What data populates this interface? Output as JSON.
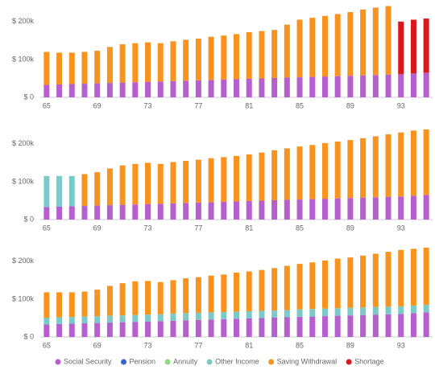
{
  "chart_data": [
    {
      "type": "bar",
      "stacked": true,
      "ylim": [
        0,
        240
      ],
      "yticks": [
        {
          "value": 0,
          "label": "$ 0"
        },
        {
          "value": 100,
          "label": "$ 100k"
        },
        {
          "value": 200,
          "label": "$ 200k"
        }
      ],
      "categories": [
        "65",
        null,
        null,
        null,
        "69",
        null,
        null,
        null,
        "73",
        null,
        null,
        null,
        "77",
        null,
        null,
        null,
        "81",
        null,
        null,
        null,
        "85",
        null,
        null,
        null,
        "89",
        null,
        null,
        null,
        "93",
        null,
        null
      ],
      "series": [
        {
          "values": [
            33,
            34,
            35,
            36,
            37,
            38,
            39,
            40,
            41,
            42,
            43,
            44,
            45,
            46,
            47,
            48,
            49,
            50,
            51,
            52,
            53,
            54,
            55,
            56,
            57,
            58,
            59,
            60,
            61,
            63,
            65
          ]
        },
        {
          "values": [
            0,
            0,
            0,
            0,
            0,
            0,
            0,
            0,
            0,
            0,
            0,
            0,
            0,
            0,
            0,
            0,
            0,
            0,
            0,
            0,
            0,
            0,
            0,
            0,
            0,
            0,
            0,
            0,
            0,
            0,
            0
          ]
        },
        {
          "values": [
            0,
            0,
            0,
            0,
            0,
            0,
            0,
            0,
            0,
            0,
            0,
            0,
            0,
            0,
            0,
            0,
            0,
            0,
            0,
            0,
            0,
            0,
            0,
            0,
            0,
            0,
            0,
            0,
            0,
            0,
            0
          ]
        },
        {
          "values": [
            0,
            0,
            0,
            0,
            0,
            0,
            0,
            0,
            0,
            0,
            0,
            0,
            0,
            0,
            0,
            0,
            0,
            0,
            0,
            0,
            0,
            0,
            0,
            0,
            0,
            0,
            0,
            0,
            0,
            0,
            0
          ]
        },
        {
          "values": [
            87,
            84,
            83,
            84,
            86,
            95,
            101,
            103,
            104,
            101,
            105,
            108,
            110,
            114,
            116,
            119,
            123,
            125,
            127,
            140,
            152,
            156,
            160,
            164,
            168,
            174,
            178,
            181,
            0,
            0,
            0
          ]
        },
        {
          "values": [
            0,
            0,
            0,
            0,
            0,
            0,
            0,
            0,
            0,
            0,
            0,
            0,
            0,
            0,
            0,
            0,
            0,
            0,
            0,
            0,
            0,
            0,
            0,
            0,
            0,
            0,
            0,
            0,
            139,
            142,
            143
          ]
        }
      ]
    },
    {
      "type": "bar",
      "stacked": true,
      "ylim": [
        0,
        240
      ],
      "yticks": [
        {
          "value": 0,
          "label": "$ 0"
        },
        {
          "value": 100,
          "label": "$ 100k"
        },
        {
          "value": 200,
          "label": "$ 200k"
        }
      ],
      "categories": [
        "65",
        null,
        null,
        null,
        "69",
        null,
        null,
        null,
        "73",
        null,
        null,
        null,
        "77",
        null,
        null,
        null,
        "81",
        null,
        null,
        null,
        "85",
        null,
        null,
        null,
        "89",
        null,
        null,
        null,
        "93",
        null,
        null
      ],
      "series": [
        {
          "values": [
            33,
            34,
            35,
            36,
            37,
            38,
            39,
            40,
            41,
            42,
            43,
            44,
            45,
            46,
            47,
            48,
            49,
            50,
            51,
            52,
            53,
            54,
            55,
            56,
            57,
            58,
            59,
            60,
            61,
            63,
            65
          ]
        },
        {
          "values": [
            0,
            0,
            0,
            0,
            0,
            0,
            0,
            0,
            0,
            0,
            0,
            0,
            0,
            0,
            0,
            0,
            0,
            0,
            0,
            0,
            0,
            0,
            0,
            0,
            0,
            0,
            0,
            0,
            0,
            0,
            0
          ]
        },
        {
          "values": [
            0,
            0,
            0,
            0,
            0,
            0,
            0,
            0,
            0,
            0,
            0,
            0,
            0,
            0,
            0,
            0,
            0,
            0,
            0,
            0,
            0,
            0,
            0,
            0,
            0,
            0,
            0,
            0,
            0,
            0,
            0
          ]
        },
        {
          "values": [
            82,
            81,
            80,
            0,
            0,
            0,
            0,
            0,
            0,
            0,
            0,
            0,
            0,
            0,
            0,
            0,
            0,
            0,
            0,
            0,
            0,
            0,
            0,
            0,
            0,
            0,
            0,
            0,
            0,
            0,
            0
          ]
        },
        {
          "values": [
            0,
            0,
            0,
            84,
            88,
            97,
            104,
            107,
            109,
            105,
            109,
            111,
            113,
            116,
            118,
            120,
            123,
            127,
            132,
            136,
            140,
            143,
            147,
            150,
            153,
            157,
            161,
            165,
            169,
            172,
            173
          ]
        },
        {
          "values": [
            0,
            0,
            0,
            0,
            0,
            0,
            0,
            0,
            0,
            0,
            0,
            0,
            0,
            0,
            0,
            0,
            0,
            0,
            0,
            0,
            0,
            0,
            0,
            0,
            0,
            0,
            0,
            0,
            0,
            0,
            0
          ]
        }
      ]
    },
    {
      "type": "bar",
      "stacked": true,
      "ylim": [
        0,
        240
      ],
      "yticks": [
        {
          "value": 0,
          "label": "$ 0"
        },
        {
          "value": 100,
          "label": "$ 100k"
        },
        {
          "value": 200,
          "label": "$ 200k"
        }
      ],
      "categories": [
        "65",
        null,
        null,
        null,
        "69",
        null,
        null,
        null,
        "73",
        null,
        null,
        null,
        "77",
        null,
        null,
        null,
        "81",
        null,
        null,
        null,
        "85",
        null,
        null,
        null,
        "89",
        null,
        null,
        null,
        "93",
        null,
        null
      ],
      "series": [
        {
          "values": [
            33,
            34,
            35,
            36,
            37,
            38,
            39,
            40,
            41,
            42,
            43,
            44,
            45,
            46,
            47,
            48,
            49,
            50,
            51,
            52,
            53,
            54,
            55,
            56,
            57,
            58,
            59,
            60,
            61,
            63,
            65
          ]
        },
        {
          "values": [
            0,
            0,
            0,
            0,
            0,
            0,
            0,
            0,
            0,
            0,
            0,
            0,
            0,
            0,
            0,
            0,
            0,
            0,
            0,
            0,
            0,
            0,
            0,
            0,
            0,
            0,
            0,
            0,
            0,
            0,
            0
          ]
        },
        {
          "values": [
            0,
            0,
            0,
            0,
            0,
            0,
            0,
            0,
            0,
            0,
            0,
            0,
            0,
            0,
            0,
            0,
            0,
            0,
            0,
            0,
            0,
            0,
            0,
            0,
            0,
            0,
            0,
            0,
            0,
            0,
            0
          ]
        },
        {
          "values": [
            18,
            18,
            18,
            18,
            18,
            18,
            18,
            18,
            18,
            18,
            19,
            19,
            19,
            19,
            19,
            19,
            19,
            19,
            19,
            19,
            20,
            20,
            20,
            20,
            20,
            20,
            20,
            20,
            20,
            20,
            20
          ]
        },
        {
          "values": [
            67,
            66,
            65,
            66,
            70,
            79,
            85,
            89,
            89,
            85,
            88,
            92,
            94,
            97,
            99,
            103,
            105,
            108,
            112,
            117,
            120,
            123,
            127,
            131,
            133,
            137,
            141,
            145,
            149,
            150,
            151
          ]
        },
        {
          "values": [
            0,
            0,
            0,
            0,
            0,
            0,
            0,
            0,
            0,
            0,
            0,
            0,
            0,
            0,
            0,
            0,
            0,
            0,
            0,
            0,
            0,
            0,
            0,
            0,
            0,
            0,
            0,
            0,
            0,
            0,
            0
          ]
        }
      ]
    }
  ],
  "legend": [
    {
      "name": "Social Security",
      "color": "#b660cd"
    },
    {
      "name": "Pension",
      "color": "#3a62cc"
    },
    {
      "name": "Annuity",
      "color": "#8fdc7f"
    },
    {
      "name": "Other Income",
      "color": "#7ccac8"
    },
    {
      "name": "Saving Withdrawal",
      "color": "#f7931e"
    },
    {
      "name": "Shortage",
      "color": "#d7191c"
    }
  ]
}
